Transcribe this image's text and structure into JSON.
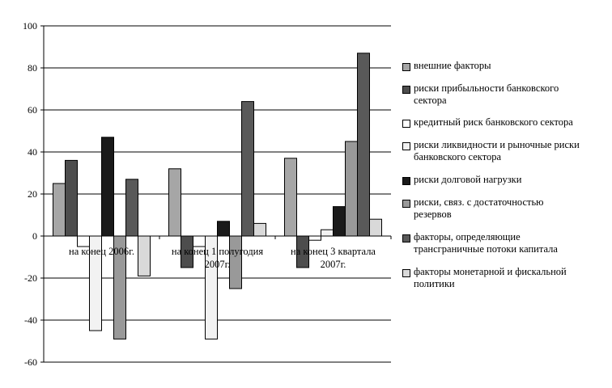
{
  "chart_data": {
    "type": "bar",
    "title": "",
    "xlabel": "",
    "ylabel": "",
    "ylim": [
      -60,
      100
    ],
    "yticks": [
      100,
      80,
      60,
      40,
      20,
      0,
      -20,
      -40,
      -60
    ],
    "grid": true,
    "legend_position": "right",
    "categories": [
      [
        "на конец 2006г."
      ],
      [
        "на конец 1 полугодия",
        "2007г."
      ],
      [
        "на конец 3 квартала",
        "2007г."
      ]
    ],
    "series": [
      {
        "name": [
          "внешние факторы"
        ],
        "color": "#a6a6a6",
        "values": [
          25,
          32,
          37
        ]
      },
      {
        "name": [
          "риски прибыльности банковского",
          "сектора"
        ],
        "color": "#4d4d4d",
        "values": [
          36,
          -15,
          -15
        ]
      },
      {
        "name": [
          "кредитный риск банковского сектора"
        ],
        "color": "#ffffff",
        "values": [
          -5,
          -5,
          -2
        ]
      },
      {
        "name": [
          "риски ликвидности и рыночные риски",
          "банковского сектора"
        ],
        "color": "#f2f2f2",
        "values": [
          -45,
          -49,
          3
        ]
      },
      {
        "name": [
          "риски долговой нагрузки"
        ],
        "color": "#1a1a1a",
        "values": [
          47,
          7,
          14
        ]
      },
      {
        "name": [
          "риски, связ. с достаточностью",
          "резервов"
        ],
        "color": "#999999",
        "values": [
          -49,
          -25,
          45
        ]
      },
      {
        "name": [
          "факторы, определяющие",
          "трансграничные потоки капитала"
        ],
        "color": "#595959",
        "values": [
          27,
          64,
          87
        ]
      },
      {
        "name": [
          "факторы монетарной и фискальной",
          "политики"
        ],
        "color": "#d9d9d9",
        "values": [
          -19,
          6,
          8
        ]
      }
    ]
  }
}
